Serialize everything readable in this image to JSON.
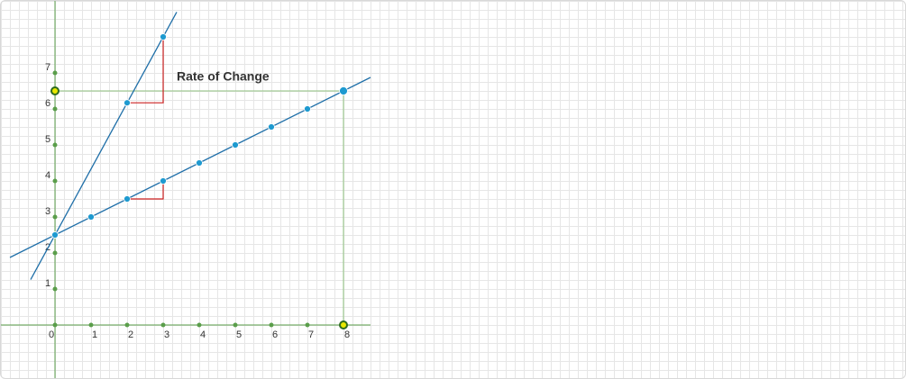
{
  "chart_data": {
    "type": "line",
    "annotation": "Rate of Change",
    "xlim": [
      -1.5,
      23.625
    ],
    "ylim": [
      -1.525,
      9
    ],
    "xticks": [
      0,
      1,
      2,
      3,
      4,
      5,
      6,
      7,
      8
    ],
    "yticks": [
      1,
      2,
      3,
      4,
      5,
      6,
      7
    ],
    "axis_color": "#5a9e4a",
    "lines": [
      {
        "color": "#1f6fa8",
        "x": [
          -1.25,
          8.75
        ],
        "values": [
          1.875,
          6.875
        ]
      },
      {
        "color": "#1f6fa8",
        "x": [
          -0.675,
          3.375
        ],
        "values": [
          1.26,
          8.69
        ]
      }
    ],
    "points": [
      {
        "color": "#1e9ad0",
        "x": [
          0,
          1,
          2,
          3,
          4,
          5,
          6,
          7,
          8
        ],
        "values": [
          2.5,
          3,
          3.5,
          4,
          4.5,
          5,
          5.5,
          6,
          6.5
        ]
      },
      {
        "color": "#1e9ad0",
        "x": [
          0,
          2,
          3
        ],
        "values": [
          2.5,
          6.17,
          8
        ]
      }
    ],
    "slope_triangles": [
      {
        "color": "#cc2222",
        "x": [
          2,
          3
        ],
        "values": [
          3.5,
          4
        ]
      },
      {
        "color": "#cc2222",
        "x": [
          2,
          3
        ],
        "values": [
          6.17,
          8
        ]
      }
    ],
    "highlight": {
      "x": 8,
      "y": 6.5,
      "color": "#e8e800"
    }
  }
}
